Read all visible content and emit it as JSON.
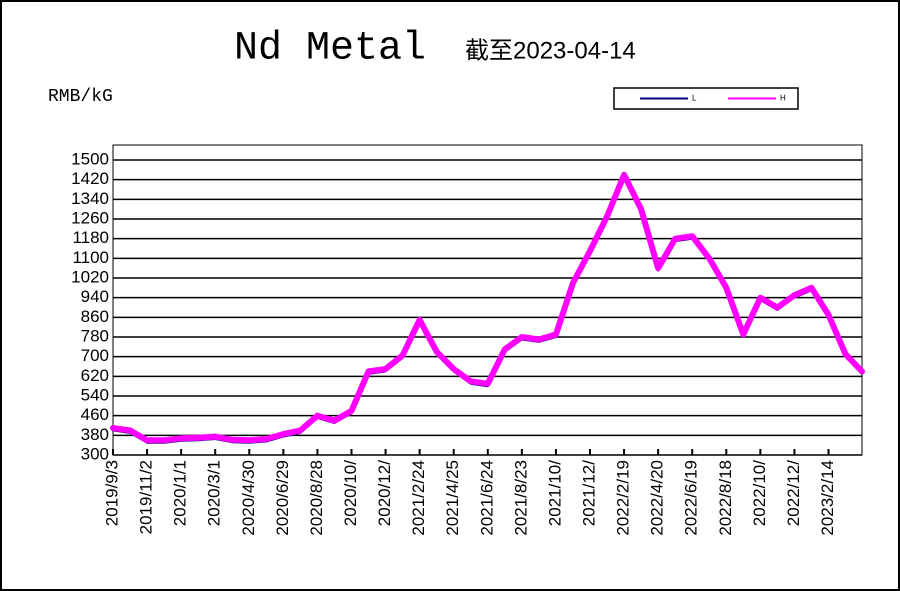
{
  "chart_data": {
    "type": "line",
    "title": "Nd Metal",
    "subtitle": "截至2023-04-14",
    "y_label": "RMB/kG",
    "x": [
      "2019/9/3",
      "2019/10/3",
      "2019/11/2",
      "2019/12/2",
      "2020/1/1",
      "2020/1/31",
      "2020/3/1",
      "2020/3/31",
      "2020/4/30",
      "2020/5/30",
      "2020/6/29",
      "2020/7/29",
      "2020/8/28",
      "2020/9/27",
      "2020/10/27",
      "2020/11/26",
      "2020/12/26",
      "2021/1/25",
      "2021/2/24",
      "2021/3/26",
      "2021/4/25",
      "2021/5/25",
      "2021/6/24",
      "2021/7/24",
      "2021/8/23",
      "2021/9/22",
      "2021/10/22",
      "2021/11/21",
      "2021/12/21",
      "2022/1/20",
      "2022/2/19",
      "2022/3/21",
      "2022/4/20",
      "2022/5/20",
      "2022/6/19",
      "2022/7/19",
      "2022/8/18",
      "2022/9/17",
      "2022/10/17",
      "2022/11/16",
      "2022/12/16",
      "2023/1/15",
      "2023/2/14",
      "2023/3/16",
      "2023/4/14"
    ],
    "series": [
      {
        "name": "L",
        "color": "#000080",
        "values": [
          400,
          390,
          350,
          350,
          358,
          360,
          365,
          352,
          350,
          355,
          375,
          390,
          450,
          430,
          470,
          630,
          640,
          695,
          840,
          710,
          640,
          590,
          580,
          720,
          770,
          760,
          780,
          990,
          1120,
          1260,
          1430,
          1290,
          1050,
          1170,
          1180,
          1090,
          970,
          780,
          930,
          890,
          940,
          970,
          860,
          700,
          630
        ]
      },
      {
        "name": "H",
        "color": "#ff00ff",
        "values": [
          410,
          400,
          360,
          360,
          368,
          370,
          375,
          362,
          360,
          365,
          385,
          400,
          460,
          440,
          480,
          640,
          650,
          705,
          850,
          720,
          650,
          600,
          590,
          730,
          780,
          770,
          790,
          1000,
          1130,
          1270,
          1440,
          1300,
          1060,
          1180,
          1190,
          1100,
          980,
          790,
          940,
          900,
          950,
          980,
          870,
          710,
          640
        ]
      }
    ],
    "xlim": [
      "2019/9/3",
      "2023/4/14"
    ],
    "xticks": [
      "2019/9/3",
      "2019/11/2",
      "2020/1/1",
      "2020/3/1",
      "2020/4/30",
      "2020/6/29",
      "2020/8/28",
      {
        "value": "2020/10/27",
        "label": "2020/10/"
      },
      {
        "value": "2020/12/26",
        "label": "2020/12/"
      },
      "2021/2/24",
      "2021/4/25",
      "2021/6/24",
      "2021/8/23",
      {
        "value": "2021/10/22",
        "label": "2021/10/"
      },
      {
        "value": "2021/12/21",
        "label": "2021/12/"
      },
      "2022/2/19",
      "2022/4/20",
      "2022/6/19",
      "2022/8/18",
      {
        "value": "2022/10/17",
        "label": "2022/10/"
      },
      {
        "value": "2022/12/16",
        "label": "2022/12/"
      },
      "2023/2/14"
    ],
    "ylim": [
      300,
      1500
    ],
    "yticks": [
      300,
      380,
      460,
      540,
      620,
      700,
      780,
      860,
      940,
      1020,
      1100,
      1180,
      1260,
      1340,
      1420,
      1500
    ],
    "grid": true
  }
}
